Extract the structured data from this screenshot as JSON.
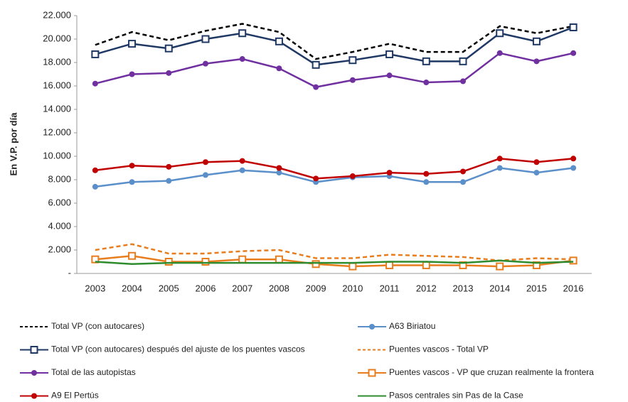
{
  "chart_data": {
    "type": "line",
    "y_label": "En V.P. por día",
    "categories": [
      "2003",
      "2004",
      "2005",
      "2006",
      "2007",
      "2008",
      "2009",
      "2010",
      "2011",
      "2012",
      "2013",
      "2014",
      "2015",
      "2016"
    ],
    "ylim": [
      0,
      22000
    ],
    "yticks": [
      {
        "value": 0,
        "label": "-"
      },
      {
        "value": 2000,
        "label": "2.000"
      },
      {
        "value": 4000,
        "label": "4.000"
      },
      {
        "value": 6000,
        "label": "6.000"
      },
      {
        "value": 8000,
        "label": "8.000"
      },
      {
        "value": 10000,
        "label": "10.000"
      },
      {
        "value": 12000,
        "label": "12.000"
      },
      {
        "value": 14000,
        "label": "14.000"
      },
      {
        "value": 16000,
        "label": "16.000"
      },
      {
        "value": 18000,
        "label": "18.000"
      },
      {
        "value": 20000,
        "label": "20.000"
      },
      {
        "value": 22000,
        "label": "22.000"
      }
    ],
    "grid": false,
    "series": [
      {
        "name": "Total VP (con autocares)",
        "color": "#000000",
        "dash": true,
        "marker": "none",
        "values": [
          19500,
          20600,
          19900,
          20700,
          21300,
          20600,
          18300,
          18900,
          19600,
          18900,
          18900,
          21100,
          20500,
          21100
        ]
      },
      {
        "name": "A63 Biriatou",
        "color": "#5b8fc9",
        "dash": false,
        "marker": "circle",
        "values": [
          7400,
          7800,
          7900,
          8400,
          8800,
          8600,
          7800,
          8200,
          8300,
          7800,
          7800,
          9000,
          8600,
          9000
        ]
      },
      {
        "name": "Total VP (con autocares) después del ajuste de los puentes vascos",
        "color": "#1f3864",
        "dash": false,
        "marker": "square",
        "values": [
          18700,
          19600,
          19200,
          20000,
          20500,
          19800,
          17800,
          18200,
          18700,
          18100,
          18100,
          20500,
          19800,
          21000
        ]
      },
      {
        "name": "Puentes vascos - Total VP",
        "color": "#e87d1e",
        "dash": true,
        "marker": "none",
        "values": [
          2000,
          2500,
          1700,
          1700,
          1900,
          2000,
          1300,
          1300,
          1600,
          1500,
          1400,
          1100,
          1300,
          1200
        ]
      },
      {
        "name": "Total de las autopistas",
        "color": "#7030a0",
        "dash": false,
        "marker": "circle",
        "values": [
          16200,
          17000,
          17100,
          17900,
          18300,
          17500,
          15900,
          16500,
          16900,
          16300,
          16400,
          18800,
          18100,
          18800
        ]
      },
      {
        "name": "Puentes vascos - VP que cruzan realmente la frontera",
        "color": "#e87d1e",
        "dash": false,
        "marker": "square",
        "values": [
          1200,
          1500,
          1000,
          1000,
          1200,
          1200,
          800,
          600,
          700,
          700,
          700,
          600,
          700,
          1100
        ]
      },
      {
        "name": "A9 El Pertús",
        "color": "#c00000",
        "dash": false,
        "marker": "circle",
        "values": [
          8800,
          9200,
          9100,
          9500,
          9600,
          9000,
          8100,
          8300,
          8600,
          8500,
          8700,
          9800,
          9500,
          9800
        ]
      },
      {
        "name": "Pasos centrales sin Pas de la Case",
        "color": "#2e8b2e",
        "dash": false,
        "marker": "none",
        "values": [
          1000,
          800,
          900,
          900,
          900,
          900,
          900,
          900,
          1000,
          1000,
          900,
          1100,
          900,
          1000
        ]
      }
    ]
  }
}
